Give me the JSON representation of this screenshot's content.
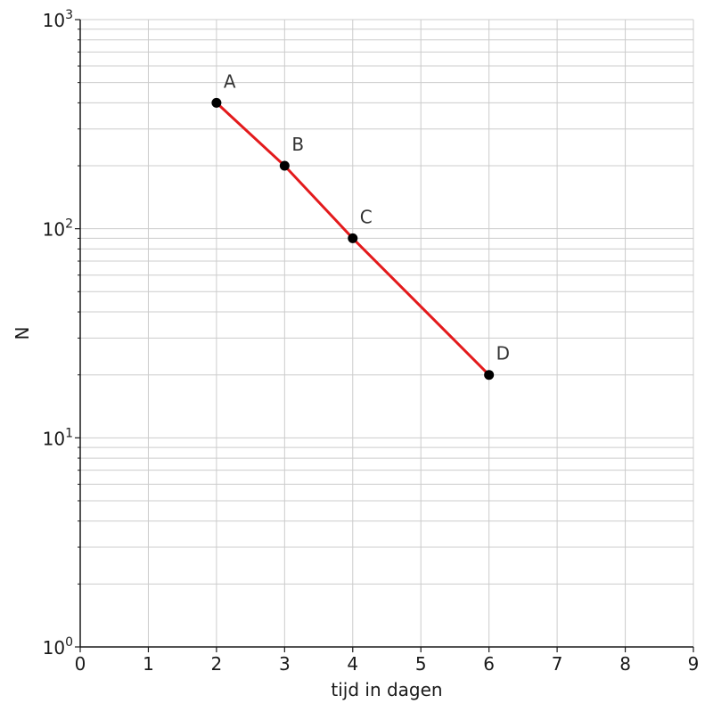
{
  "chart_data": {
    "type": "line",
    "xlabel": "tijd in dagen",
    "ylabel": "N",
    "xlim": [
      0,
      9
    ],
    "ylim": [
      1,
      1000
    ],
    "y_scale": "log",
    "grid": true,
    "x_ticks": [
      0,
      1,
      2,
      3,
      4,
      5,
      6,
      7,
      8,
      9
    ],
    "x_tick_labels": [
      "0",
      "1",
      "2",
      "3",
      "4",
      "5",
      "6",
      "7",
      "8",
      "9"
    ],
    "y_ticks": [
      1,
      10,
      100,
      1000
    ],
    "y_tick_labels": [
      {
        "base": "10",
        "exp": "0"
      },
      {
        "base": "10",
        "exp": "1"
      },
      {
        "base": "10",
        "exp": "2"
      },
      {
        "base": "10",
        "exp": "3"
      }
    ],
    "series": [
      {
        "color": "#e31a1c",
        "marker_color": "#000000",
        "points": [
          {
            "label": "A",
            "x": 2,
            "y": 400
          },
          {
            "label": "B",
            "x": 3,
            "y": 200
          },
          {
            "label": "C",
            "x": 4,
            "y": 90
          },
          {
            "label": "D",
            "x": 6,
            "y": 20
          }
        ]
      }
    ]
  }
}
